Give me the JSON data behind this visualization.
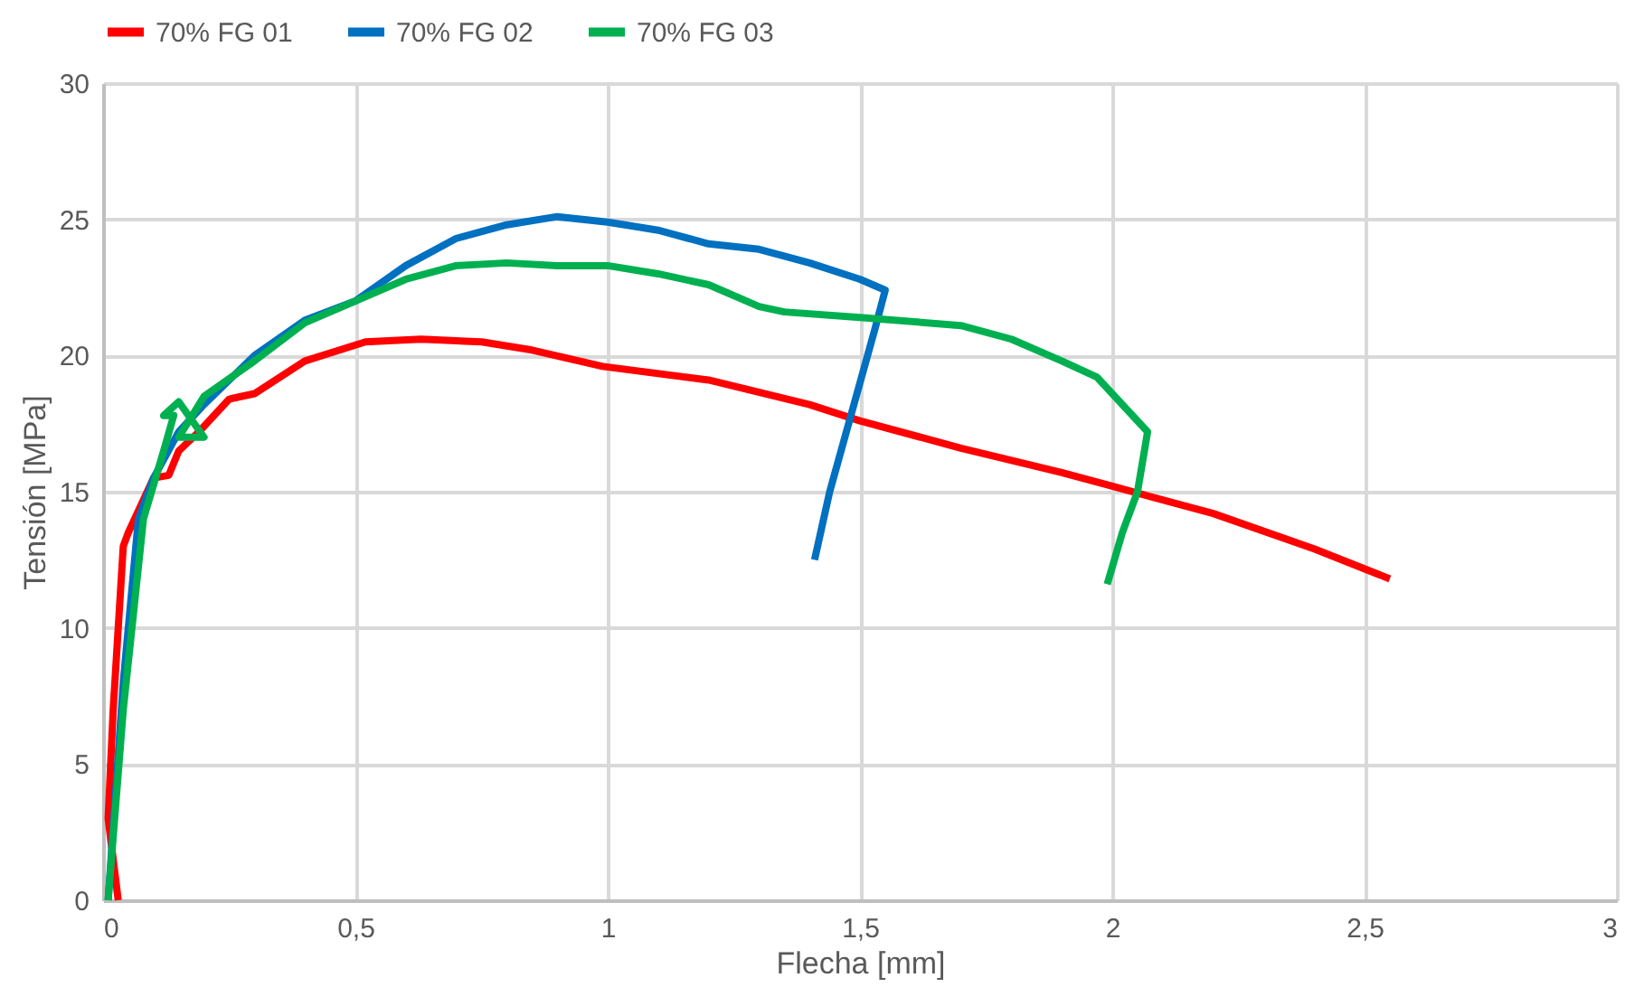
{
  "chart_data": {
    "type": "line",
    "xlabel": "Flecha [mm]",
    "ylabel": "Tensión [MPa]",
    "xlim": [
      0,
      3
    ],
    "ylim": [
      0,
      30
    ],
    "xticks": [
      0,
      {
        "value": 0.5,
        "label": "0,5"
      },
      1,
      {
        "value": 1.5,
        "label": "1,5"
      },
      2,
      {
        "value": 2.5,
        "label": "2,5"
      },
      3
    ],
    "yticks": [
      0,
      5,
      10,
      15,
      20,
      25,
      30
    ],
    "grid": true,
    "legend": "top",
    "marker": "none",
    "line_style": "solid",
    "series": [
      {
        "name": "70% FG 01",
        "color": "#ff0000",
        "x": [
          0.03,
          0.01,
          0.02,
          0.04,
          0.05,
          0.1,
          0.13,
          0.15,
          0.19,
          0.25,
          0.3,
          0.4,
          0.52,
          0.63,
          0.75,
          0.85,
          0.99,
          1.2,
          1.4,
          1.5,
          1.7,
          1.9,
          2.0,
          2.2,
          2.4,
          2.55
        ],
        "values": [
          0,
          3,
          7,
          13,
          13.5,
          15.5,
          15.6,
          16.5,
          17.2,
          18.4,
          18.6,
          19.8,
          20.5,
          20.6,
          20.5,
          20.2,
          19.6,
          19.1,
          18.2,
          17.6,
          16.6,
          15.7,
          15.2,
          14.2,
          12.9,
          11.8
        ]
      },
      {
        "name": "70% FG 02",
        "color": "#0070c0",
        "x": [
          0.01,
          0.04,
          0.07,
          0.1,
          0.15,
          0.2,
          0.3,
          0.4,
          0.5,
          0.6,
          0.7,
          0.8,
          0.9,
          1.0,
          1.1,
          1.2,
          1.3,
          1.4,
          1.5,
          1.55,
          1.53,
          1.5,
          1.47,
          1.44,
          1.41
        ],
        "values": [
          0,
          8,
          14,
          15.5,
          17.2,
          18.2,
          20,
          21.3,
          22,
          23.3,
          24.3,
          24.8,
          25.1,
          24.9,
          24.6,
          24.1,
          23.9,
          23.4,
          22.8,
          22.4,
          21,
          19,
          17,
          15,
          12.5
        ]
      },
      {
        "name": "70% FG 03",
        "color": "#00b050",
        "x": [
          0.01,
          0.04,
          0.08,
          0.12,
          0.14,
          0.12,
          0.15,
          0.2,
          0.15,
          0.2,
          0.3,
          0.4,
          0.5,
          0.6,
          0.7,
          0.8,
          0.9,
          1.0,
          1.1,
          1.2,
          1.3,
          1.35,
          1.5,
          1.7,
          1.8,
          1.9,
          1.97,
          2.07,
          2.05,
          2.02,
          1.99
        ],
        "values": [
          0,
          7,
          14,
          16.5,
          17.8,
          17.8,
          18.3,
          17,
          17,
          18.5,
          19.8,
          21.2,
          22,
          22.8,
          23.3,
          23.4,
          23.3,
          23.3,
          23.0,
          22.6,
          21.8,
          21.6,
          21.4,
          21.1,
          20.6,
          19.8,
          19.2,
          17.2,
          15,
          13.5,
          11.6
        ]
      }
    ]
  }
}
